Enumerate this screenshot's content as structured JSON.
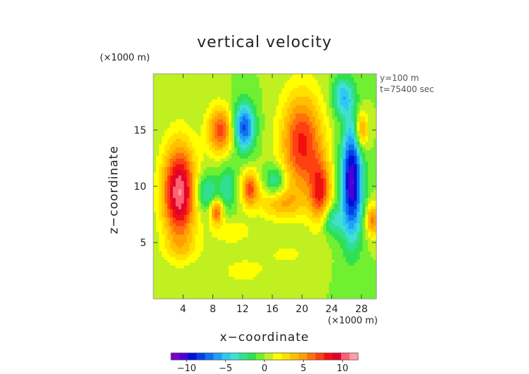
{
  "chart_data": {
    "type": "heatmap",
    "title": "vertical velocity",
    "xlabel": "x−coordinate",
    "ylabel": "z−coordinate",
    "x_unit": "(×1000 m)",
    "y_unit": "(×1000 m)",
    "annotations": [
      "y=100 m",
      "t=75400 sec"
    ],
    "xlim": [
      0,
      30
    ],
    "ylim": [
      0,
      20
    ],
    "x_ticks": [
      4,
      8,
      12,
      16,
      20,
      24,
      28
    ],
    "y_ticks": [
      5,
      10,
      15
    ],
    "colorbar": {
      "range": [
        -12,
        12
      ],
      "ticks": [
        -10,
        -5,
        0,
        5,
        10
      ],
      "colors": [
        "#7a00c8",
        "#4a00d8",
        "#0010d8",
        "#0040e8",
        "#1070f0",
        "#20a0f8",
        "#30c8f0",
        "#40e0d0",
        "#30e090",
        "#30e050",
        "#70f030",
        "#c0f020",
        "#ffff00",
        "#ffe000",
        "#ffc000",
        "#ffa000",
        "#ff7010",
        "#ff4010",
        "#f01010",
        "#e00030",
        "#ff6070",
        "#ffa0a8"
      ]
    },
    "features": [
      {
        "x": 3.5,
        "z": 9.5,
        "sx": 1.6,
        "sz": 3.0,
        "amp": 11
      },
      {
        "x": 9.0,
        "z": 15.0,
        "sx": 1.2,
        "sz": 1.5,
        "amp": 7
      },
      {
        "x": 12.2,
        "z": 15.3,
        "sx": 1.0,
        "sz": 1.5,
        "amp": -8
      },
      {
        "x": 20.0,
        "z": 13.8,
        "sx": 2.0,
        "sz": 3.2,
        "amp": 8
      },
      {
        "x": 22.5,
        "z": 9.5,
        "sx": 1.0,
        "sz": 2.0,
        "amp": 7
      },
      {
        "x": 26.7,
        "z": 10.5,
        "sx": 1.0,
        "sz": 3.5,
        "amp": -11
      },
      {
        "x": 28.0,
        "z": 15.0,
        "sx": 0.6,
        "sz": 1.2,
        "amp": 6
      },
      {
        "x": 13.0,
        "z": 9.8,
        "sx": 0.8,
        "sz": 1.1,
        "amp": 7
      },
      {
        "x": 16.5,
        "z": 10.5,
        "sx": 1.0,
        "sz": 1.0,
        "amp": -4
      },
      {
        "x": 8.5,
        "z": 7.8,
        "sx": 0.6,
        "sz": 0.8,
        "amp": 7
      },
      {
        "x": 7.0,
        "z": 9.5,
        "sx": 1.2,
        "sz": 1.2,
        "amp": -4
      },
      {
        "x": 10.0,
        "z": 10.0,
        "sx": 0.8,
        "sz": 1.5,
        "amp": -3
      },
      {
        "x": 24.0,
        "z": 7.0,
        "sx": 1.0,
        "sz": 1.0,
        "amp": -4
      },
      {
        "x": 25.5,
        "z": 18.0,
        "sx": 1.0,
        "sz": 1.2,
        "amp": -5
      },
      {
        "x": 17.0,
        "z": 8.5,
        "sx": 2.0,
        "sz": 1.0,
        "amp": 4
      },
      {
        "x": 10.5,
        "z": 6.0,
        "sx": 2.0,
        "sz": 0.8,
        "amp": 2
      },
      {
        "x": 4.0,
        "z": 4.5,
        "sx": 2.0,
        "sz": 0.8,
        "amp": 1.5
      },
      {
        "x": 12.0,
        "z": 2.5,
        "sx": 2.5,
        "sz": 1.0,
        "amp": 1.5
      },
      {
        "x": 18.0,
        "z": 4.0,
        "sx": 2.5,
        "sz": 1.0,
        "amp": 1.2
      },
      {
        "x": 29.5,
        "z": 7.0,
        "sx": 0.6,
        "sz": 1.0,
        "amp": 6
      }
    ]
  }
}
